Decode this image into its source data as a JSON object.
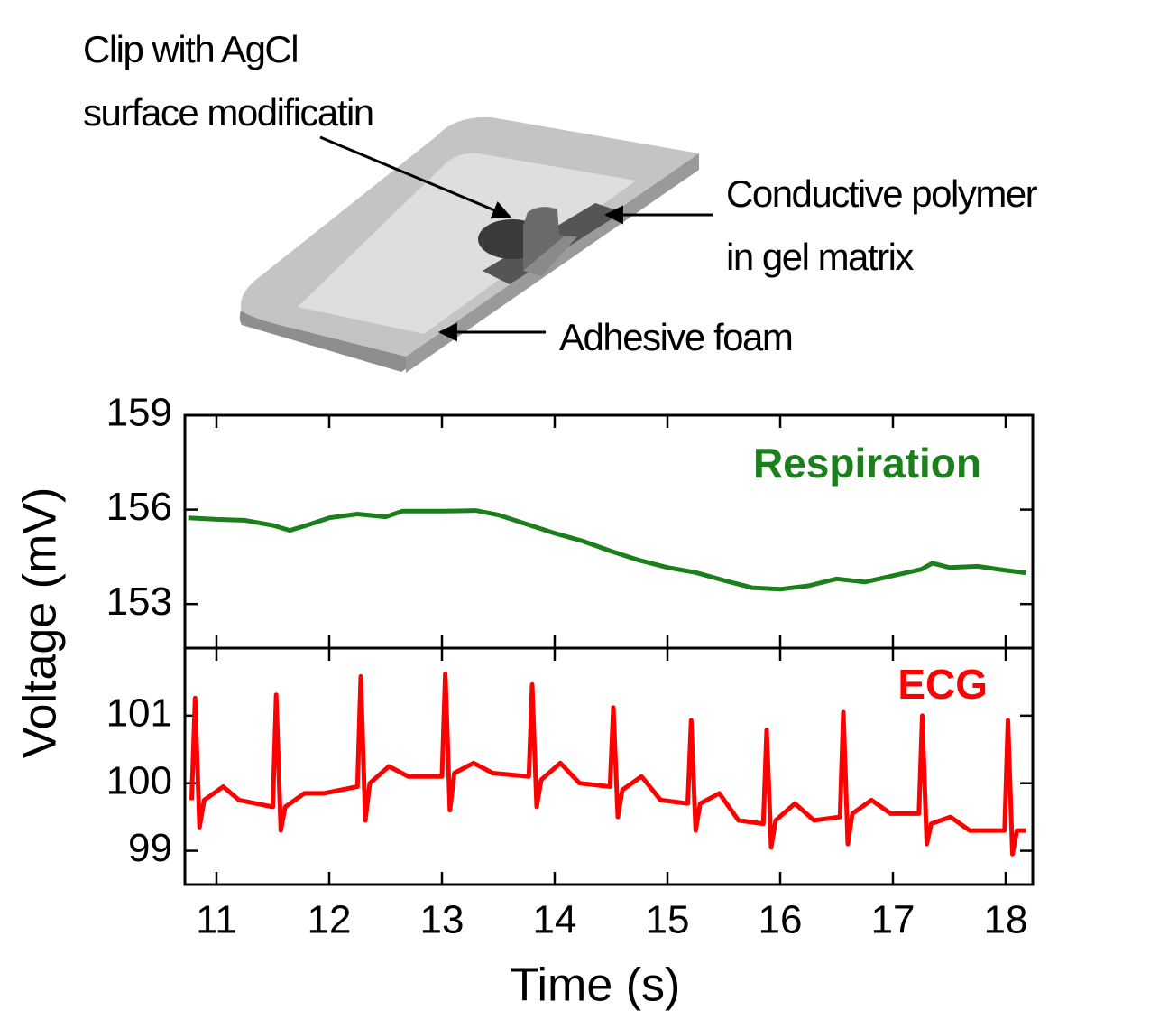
{
  "annotations": [
    "Clip with AgCl",
    "surface modificatin",
    "Conductive polymer",
    "in gel matrix",
    "Adhesive foam"
  ],
  "ylabel": "Voltage (mV)",
  "chart_data": [
    {
      "type": "line",
      "series": [
        {
          "name": "Respiration",
          "color": "#1b7f1b",
          "x": [
            10.75,
            11.0,
            11.25,
            11.5,
            11.65,
            11.8,
            12.0,
            12.25,
            12.5,
            12.65,
            13.0,
            13.3,
            13.5,
            13.75,
            14.0,
            14.25,
            14.5,
            14.75,
            15.0,
            15.25,
            15.5,
            15.75,
            16.0,
            16.25,
            16.5,
            16.75,
            17.0,
            17.25,
            17.35,
            17.5,
            17.75,
            18.0,
            18.18
          ],
          "values": [
            155.74,
            155.69,
            155.66,
            155.5,
            155.34,
            155.5,
            155.74,
            155.86,
            155.77,
            155.95,
            155.95,
            155.97,
            155.83,
            155.54,
            155.25,
            155.0,
            154.68,
            154.39,
            154.16,
            154.0,
            153.75,
            153.52,
            153.47,
            153.58,
            153.8,
            153.7,
            153.9,
            154.1,
            154.3,
            154.16,
            154.2,
            154.07,
            153.99
          ]
        }
      ],
      "xlim": [
        10.72,
        18.24
      ],
      "xticks": [
        11,
        12,
        13,
        14,
        15,
        16,
        17,
        18
      ],
      "ylim": [
        151.6,
        159
      ],
      "yticks": [
        153,
        156,
        159
      ]
    },
    {
      "type": "line",
      "xlabel": "Time (s)",
      "series": [
        {
          "name": "ECG",
          "color": "#ff0000",
          "x": [
            10.78,
            10.81,
            10.85,
            10.89,
            11.06,
            11.2,
            11.5,
            11.53,
            11.57,
            11.61,
            11.78,
            11.95,
            12.25,
            12.28,
            12.32,
            12.36,
            12.53,
            12.7,
            13.0,
            13.03,
            13.07,
            13.11,
            13.28,
            13.45,
            13.77,
            13.8,
            13.84,
            13.88,
            14.05,
            14.22,
            14.49,
            14.52,
            14.56,
            14.6,
            14.77,
            14.94,
            15.18,
            15.21,
            15.25,
            15.29,
            15.46,
            15.63,
            15.85,
            15.88,
            15.92,
            15.96,
            16.13,
            16.3,
            16.53,
            16.56,
            16.6,
            16.64,
            16.81,
            16.98,
            17.23,
            17.26,
            17.3,
            17.34,
            17.51,
            17.68,
            17.99,
            18.02,
            18.06,
            18.1,
            18.18
          ],
          "values": [
            99.75,
            101.26,
            99.35,
            99.75,
            99.95,
            99.75,
            99.65,
            101.31,
            99.3,
            99.65,
            99.85,
            99.85,
            99.95,
            101.58,
            99.45,
            100.0,
            100.25,
            100.1,
            100.1,
            101.62,
            99.6,
            100.15,
            100.3,
            100.15,
            100.1,
            101.46,
            99.65,
            100.05,
            100.3,
            100.0,
            99.95,
            101.12,
            99.5,
            99.9,
            100.1,
            99.75,
            99.7,
            100.93,
            99.3,
            99.7,
            99.85,
            99.45,
            99.4,
            100.79,
            99.05,
            99.45,
            99.7,
            99.45,
            99.5,
            101.05,
            99.1,
            99.55,
            99.75,
            99.55,
            99.55,
            101.0,
            99.1,
            99.4,
            99.5,
            99.3,
            99.3,
            100.93,
            98.95,
            99.3,
            99.3
          ]
        }
      ],
      "xlim": [
        10.72,
        18.24
      ],
      "xticks": [
        11,
        12,
        13,
        14,
        15,
        16,
        17,
        18
      ],
      "ylim": [
        98.5,
        102
      ],
      "yticks": [
        99,
        100,
        101
      ]
    }
  ]
}
